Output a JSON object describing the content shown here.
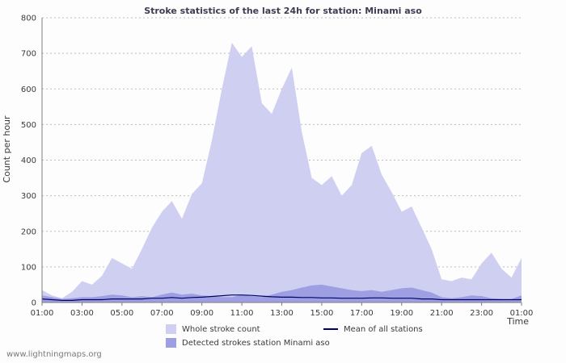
{
  "title": "Stroke statistics of the last 24h for station: Minami aso",
  "watermark": "www.lightningmaps.org",
  "chart_data": {
    "type": "area",
    "title": "Stroke statistics of the last 24h for station: Minami aso",
    "xlabel": "Time",
    "ylabel": "Count per hour",
    "ylim": [
      0,
      800
    ],
    "y_tick_step": 100,
    "grid": true,
    "legend_position": "bottom",
    "x_tick_labels": [
      "01:00",
      "03:00",
      "05:00",
      "07:00",
      "09:00",
      "11:00",
      "13:00",
      "15:00",
      "17:00",
      "19:00",
      "21:00",
      "23:00",
      "01:00"
    ],
    "x_resolution_minutes": 30,
    "colors": {
      "whole": "#cfcff2",
      "detected": "#9e9ee2",
      "mean": "#000066",
      "grid": "#bdbdbd",
      "axis": "#7d7d7d",
      "text": "#3a3a3a"
    },
    "series": [
      {
        "name": "Whole stroke count",
        "type": "area",
        "color_key": "whole",
        "values": [
          35,
          20,
          12,
          30,
          60,
          50,
          75,
          125,
          110,
          95,
          150,
          210,
          255,
          285,
          235,
          305,
          335,
          455,
          600,
          730,
          690,
          720,
          560,
          530,
          600,
          660,
          480,
          350,
          330,
          355,
          300,
          330,
          420,
          440,
          360,
          310,
          255,
          270,
          210,
          150,
          65,
          60,
          70,
          65,
          110,
          140,
          95,
          70,
          125
        ]
      },
      {
        "name": "Detected strokes station Minami aso",
        "type": "area",
        "color_key": "detected",
        "values": [
          20,
          15,
          10,
          12,
          15,
          15,
          18,
          22,
          20,
          15,
          18,
          15,
          22,
          28,
          22,
          25,
          20,
          18,
          15,
          15,
          22,
          18,
          15,
          22,
          30,
          35,
          42,
          48,
          50,
          45,
          40,
          35,
          32,
          35,
          30,
          35,
          40,
          42,
          35,
          28,
          15,
          12,
          15,
          20,
          18,
          12,
          10,
          10,
          20
        ]
      },
      {
        "name": "Mean of all stations",
        "type": "line",
        "color_key": "mean",
        "values": [
          10,
          8,
          6,
          6,
          8,
          8,
          8,
          10,
          10,
          10,
          10,
          12,
          12,
          14,
          12,
          14,
          15,
          17,
          19,
          21,
          21,
          20,
          18,
          16,
          15,
          15,
          14,
          14,
          13,
          13,
          12,
          12,
          12,
          13,
          13,
          12,
          12,
          12,
          10,
          10,
          8,
          8,
          8,
          8,
          8,
          8,
          8,
          8,
          8
        ]
      }
    ]
  },
  "legend": {
    "whole_label": "Whole stroke count",
    "mean_label": "Mean of all stations",
    "detected_label": "Detected strokes station Minami aso"
  }
}
